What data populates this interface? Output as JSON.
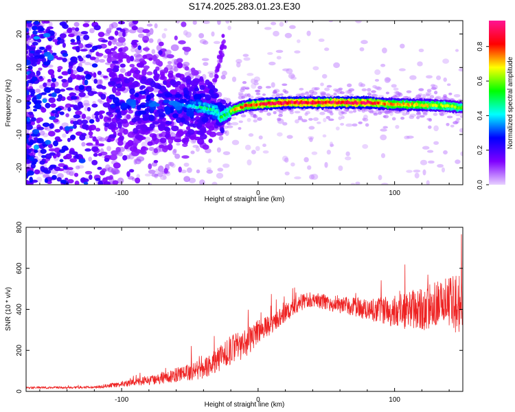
{
  "title": "S174.2025.283.01.23.E30",
  "chart_data": [
    {
      "type": "heatmap",
      "title": "S174.2025.283.01.23.E30",
      "xlabel": "Height of straight line (km)",
      "ylabel": "Frequency (Hz)",
      "xlim": [
        -170,
        150
      ],
      "ylim": [
        -25,
        24
      ],
      "x_ticks": [
        -100,
        0,
        100
      ],
      "x_tick_labels": [
        "-100",
        "0",
        "100"
      ],
      "y_ticks": [
        -20,
        -10,
        0,
        10,
        20
      ],
      "y_tick_labels": [
        "-20",
        "-10",
        "0",
        "10",
        "20"
      ],
      "ridge": {
        "description": "frequency ridge vs height",
        "x": [
          -170,
          -60,
          -40,
          -30,
          -28,
          -20,
          -10,
          0,
          20,
          40,
          60,
          80,
          100,
          120,
          140,
          150
        ],
        "y": [
          0,
          -1,
          -2,
          -3,
          -5,
          -3,
          -1.5,
          -1,
          -0.5,
          -0.5,
          -0.5,
          -0.5,
          -1,
          -1.2,
          -1.5,
          -2
        ],
        "peak_amplitude": [
          0.1,
          0.3,
          0.5,
          0.55,
          0.6,
          0.7,
          0.8,
          0.85,
          0.92,
          0.9,
          0.92,
          0.88,
          0.75,
          0.7,
          0.65,
          0.6
        ]
      },
      "streak": {
        "x": [
          -32,
          -25
        ],
        "y": [
          5,
          18
        ]
      },
      "colorbar": {
        "label": "Normalized spectral amplitude",
        "range": [
          0,
          0.95
        ],
        "ticks": [
          0.0,
          0.2,
          0.4,
          0.6,
          0.8
        ],
        "tick_labels": [
          "0.0",
          "0.2",
          "0.4",
          "0.6",
          "0.8"
        ],
        "colors": [
          "#e8d0ff",
          "#7f00ff",
          "#0000ff",
          "#00ffff",
          "#00ff00",
          "#ffff00",
          "#ff0000",
          "#ff1493"
        ]
      }
    },
    {
      "type": "line",
      "xlabel": "Height of straight line (km)",
      "ylabel": "SNR (10 * v/v)",
      "xlim": [
        -170,
        150
      ],
      "ylim": [
        0,
        800
      ],
      "x_ticks": [
        -100,
        0,
        100
      ],
      "x_tick_labels": [
        "-100",
        "0",
        "100"
      ],
      "y_ticks": [
        0,
        200,
        400,
        600,
        800
      ],
      "y_tick_labels": [
        "0",
        "200",
        "400",
        "600",
        "800"
      ],
      "color": "#ee2222",
      "envelope": {
        "x": [
          -170,
          -120,
          -100,
          -80,
          -60,
          -40,
          -30,
          -20,
          -10,
          0,
          10,
          20,
          30,
          40,
          60,
          80,
          100,
          120,
          140,
          150
        ],
        "mean": [
          18,
          20,
          35,
          55,
          80,
          110,
          150,
          200,
          230,
          290,
          330,
          380,
          430,
          450,
          420,
          400,
          390,
          400,
          430,
          420
        ],
        "spread": [
          8,
          10,
          25,
          40,
          60,
          80,
          100,
          120,
          120,
          100,
          80,
          70,
          70,
          60,
          70,
          90,
          130,
          180,
          220,
          250
        ]
      }
    }
  ]
}
